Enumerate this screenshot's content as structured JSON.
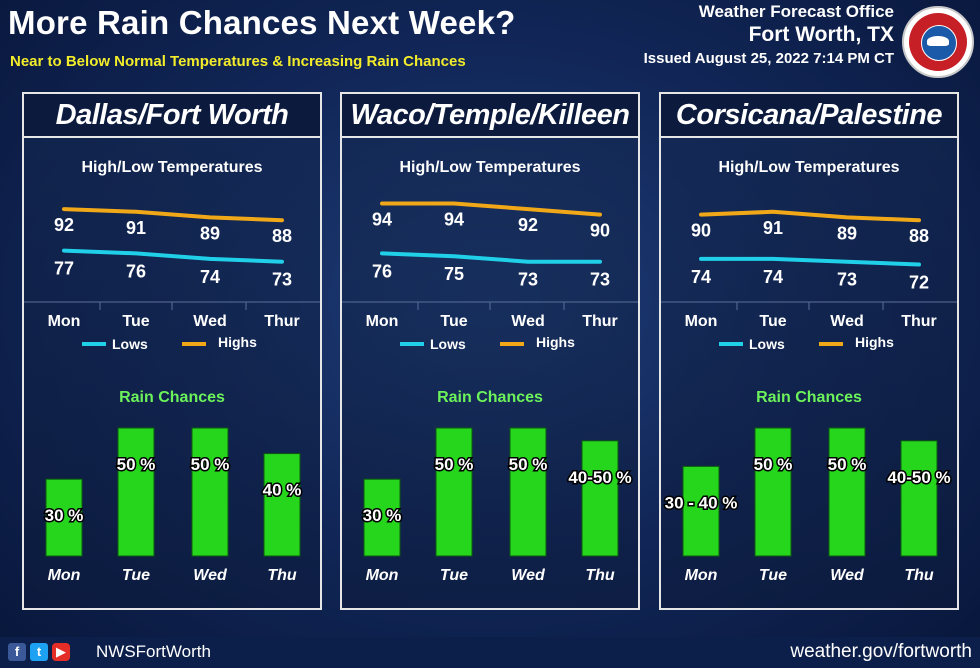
{
  "header": {
    "title": "More Rain Chances Next Week?",
    "subtitle": "Near to Below Normal Temperatures & Increasing Rain Chances",
    "office_line1": "Weather Forecast Office",
    "office_line2": "Fort Worth, TX",
    "issued": "Issued August 25, 2022 7:14 PM CT"
  },
  "seal": {
    "text": "NATIONAL WEATHER SERVICE"
  },
  "footer": {
    "handle": "NWSFortWorth",
    "website": "weather.gov/fortworth",
    "icons": [
      "facebook-icon",
      "twitter-icon",
      "youtube-icon"
    ]
  },
  "colors": {
    "highs": "#f0a818",
    "lows": "#20d0e8",
    "bars": "#26d61c",
    "rain_title": "#6cf25a"
  },
  "chart_data": [
    {
      "type": "line+bar",
      "title": "Dallas/Fort Worth",
      "temp_title": "High/Low Temperatures",
      "categories": [
        "Mon",
        "Tue",
        "Wed",
        "Thur"
      ],
      "series": [
        {
          "name": "Highs",
          "values": [
            92,
            91,
            89,
            88
          ]
        },
        {
          "name": "Lows",
          "values": [
            77,
            76,
            74,
            73
          ]
        }
      ],
      "legend": [
        "Lows",
        "Highs"
      ],
      "rain_title": "Rain Chances",
      "rain_categories": [
        "Mon",
        "Tue",
        "Wed",
        "Thu"
      ],
      "rain_values": [
        30,
        50,
        50,
        40
      ],
      "rain_labels": [
        "30 %",
        "50 %",
        "50 %",
        "40 %"
      ]
    },
    {
      "type": "line+bar",
      "title": "Waco/Temple/Killeen",
      "temp_title": "High/Low Temperatures",
      "categories": [
        "Mon",
        "Tue",
        "Wed",
        "Thur"
      ],
      "series": [
        {
          "name": "Highs",
          "values": [
            94,
            94,
            92,
            90
          ]
        },
        {
          "name": "Lows",
          "values": [
            76,
            75,
            73,
            73
          ]
        }
      ],
      "legend": [
        "Lows",
        "Highs"
      ],
      "rain_title": "Rain Chances",
      "rain_categories": [
        "Mon",
        "Tue",
        "Wed",
        "Thu"
      ],
      "rain_values": [
        30,
        50,
        50,
        45
      ],
      "rain_labels": [
        "30 %",
        "50 %",
        "50 %",
        "40-50 %"
      ]
    },
    {
      "type": "line+bar",
      "title": "Corsicana/Palestine",
      "temp_title": "High/Low Temperatures",
      "categories": [
        "Mon",
        "Tue",
        "Wed",
        "Thur"
      ],
      "series": [
        {
          "name": "Highs",
          "values": [
            90,
            91,
            89,
            88
          ]
        },
        {
          "name": "Lows",
          "values": [
            74,
            74,
            73,
            72
          ]
        }
      ],
      "legend": [
        "Lows",
        "Highs"
      ],
      "rain_title": "Rain Chances",
      "rain_categories": [
        "Mon",
        "Tue",
        "Wed",
        "Thu"
      ],
      "rain_values": [
        35,
        50,
        50,
        45
      ],
      "rain_labels": [
        "30 - 40 %",
        "50 %",
        "50 %",
        "40-50 %"
      ]
    }
  ]
}
